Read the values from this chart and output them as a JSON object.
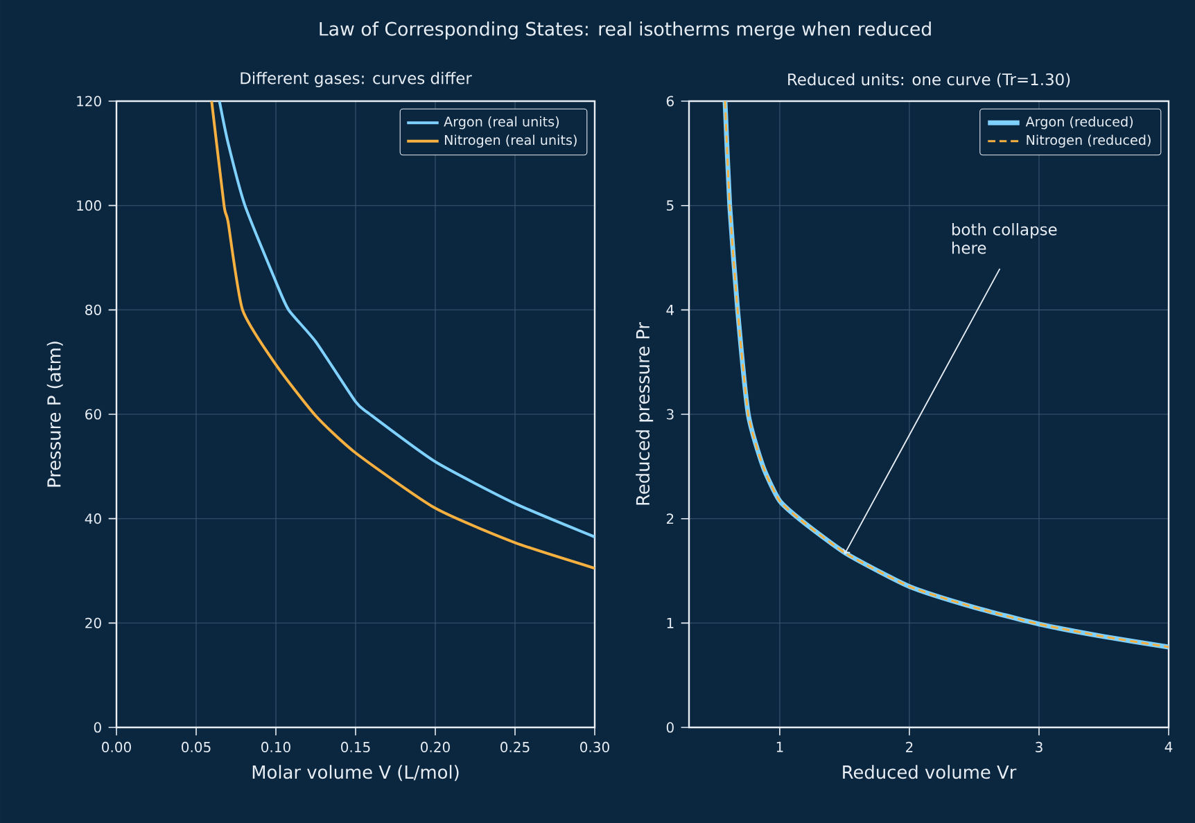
{
  "chart_data": [
    {
      "type": "line",
      "title": "Law of Corresponding States: real isotherms merge when reduced",
      "subtitle": "Different gases: curves differ",
      "xlabel": "Molar volume V  (L/mol)",
      "ylabel": "Pressure P  (atm)",
      "xlim": [
        0,
        0.3
      ],
      "ylim": [
        0,
        120
      ],
      "xticks": [
        {
          "value": 0,
          "label": "0.00"
        },
        {
          "value": 0.05,
          "label": "0.05"
        },
        {
          "value": 0.1,
          "label": "0.10"
        },
        {
          "value": 0.15,
          "label": "0.15"
        },
        {
          "value": 0.2,
          "label": "0.20"
        },
        {
          "value": 0.25,
          "label": "0.25"
        },
        {
          "value": 0.3,
          "label": "0.30"
        }
      ],
      "yticks": [
        0,
        20,
        40,
        60,
        80,
        100,
        120
      ],
      "grid": true,
      "legend": "top right",
      "marker": "none",
      "series": [
        {
          "name": "Argon (real units)",
          "color": "#7fd1ff",
          "line_style": "solid",
          "x": [
            0.0646,
            0.07,
            0.0806,
            0.1,
            0.108,
            0.125,
            0.15,
            0.159,
            0.2,
            0.25,
            0.3
          ],
          "values": [
            120,
            112,
            100,
            85.4,
            80,
            73.9,
            62.4,
            60,
            50.9,
            42.9,
            36.5
          ]
        },
        {
          "name": "Nitrogen (real units)",
          "color": "#f5b040",
          "line_style": "solid",
          "x": [
            0.0597,
            0.0675,
            0.07,
            0.0791,
            0.1,
            0.125,
            0.15,
            0.2,
            0.25,
            0.3
          ],
          "values": [
            120,
            100,
            96.9,
            80,
            69.5,
            59.7,
            52.6,
            42.0,
            35.4,
            30.5
          ]
        }
      ]
    },
    {
      "type": "line",
      "subtitle": "Reduced units: one curve (Tr=1.30)",
      "xlabel": "Reduced volume  Vr",
      "ylabel": "Reduced pressure  Pr",
      "xlim": [
        0.3,
        4
      ],
      "ylim": [
        0,
        6
      ],
      "xticks": [
        1,
        2,
        3,
        4
      ],
      "yticks": [
        0,
        1,
        2,
        3,
        4,
        5,
        6
      ],
      "grid": true,
      "legend": "top right",
      "marker": "none",
      "annotations": [
        {
          "text": "both collapse here",
          "x": 1.5,
          "y": 1.66
        }
      ],
      "series": [
        {
          "name": "Argon (reduced)",
          "color": "#7fd1ff",
          "line_style": "solid",
          "x": [
            0.578,
            0.614,
            0.675,
            0.757,
            0.871,
            1,
            1.2,
            1.52,
            2,
            2.5,
            3,
            3.5,
            4
          ],
          "values": [
            6,
            5,
            4,
            3,
            2.5,
            2.17,
            1.95,
            1.66,
            1.35,
            1.15,
            0.99,
            0.87,
            0.77
          ]
        },
        {
          "name": "Nitrogen (reduced)",
          "color": "#f5b040",
          "line_style": "dashed",
          "x": [
            0.578,
            0.614,
            0.675,
            0.757,
            0.871,
            1,
            1.2,
            1.52,
            2,
            2.5,
            3,
            3.5,
            4
          ],
          "values": [
            6,
            5,
            4,
            3,
            2.5,
            2.17,
            1.95,
            1.66,
            1.35,
            1.15,
            0.99,
            0.87,
            0.77
          ]
        }
      ]
    }
  ]
}
